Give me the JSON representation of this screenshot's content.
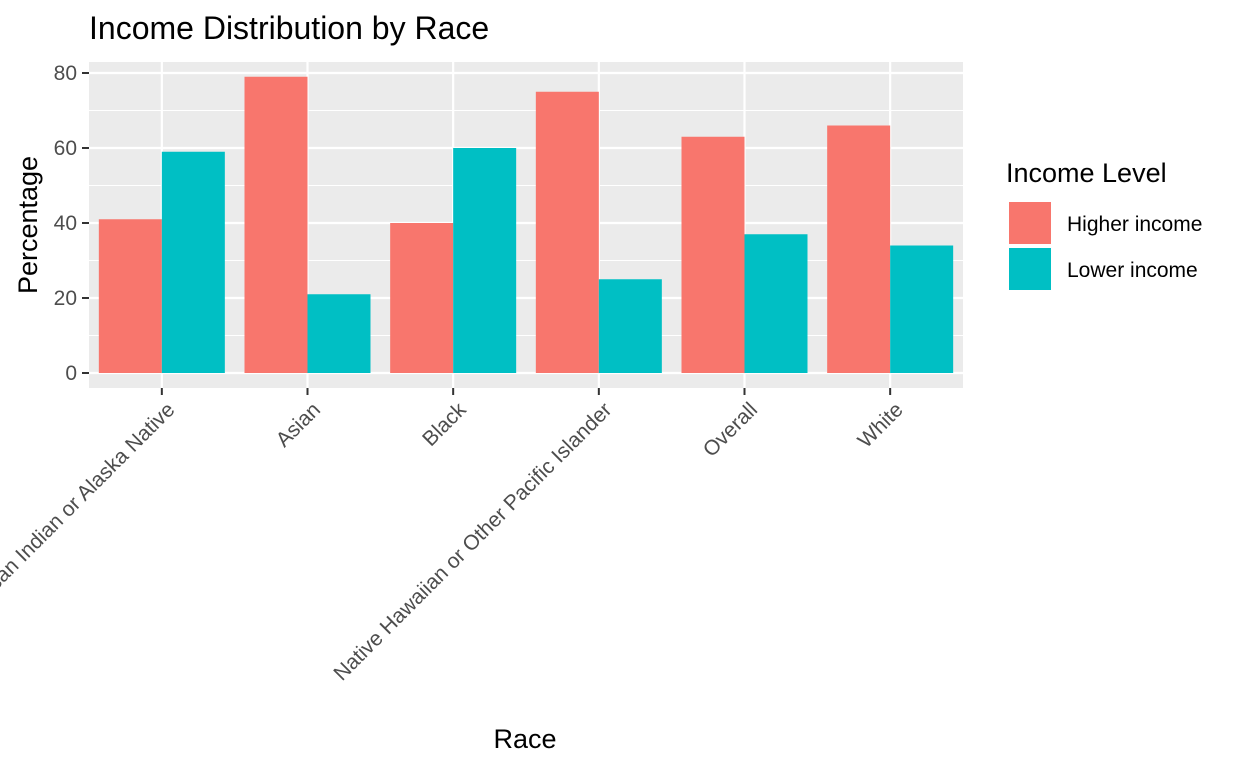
{
  "chart_data": {
    "type": "bar",
    "title": "Income Distribution by Race",
    "xlabel": "Race",
    "ylabel": "Percentage",
    "categories": [
      "American Indian or Alaska Native",
      "Asian",
      "Black",
      "Native Hawaiian or Other Pacific Islander",
      "Overall",
      "White"
    ],
    "series": [
      {
        "name": "Higher income",
        "values": [
          41,
          79,
          40,
          75,
          63,
          66
        ]
      },
      {
        "name": "Lower income",
        "values": [
          59,
          21,
          60,
          25,
          37,
          34
        ]
      }
    ],
    "ylim": [
      0,
      80
    ],
    "yticks": [
      "0",
      "20",
      "40",
      "60",
      "80"
    ],
    "grid": true,
    "legend": {
      "title": "Income Level",
      "position": "right"
    },
    "colors": {
      "Higher income": "#F8766D",
      "Lower income": "#00BFC4",
      "panel_background": "#EBEBEB",
      "grid": "#FFFFFF"
    }
  }
}
